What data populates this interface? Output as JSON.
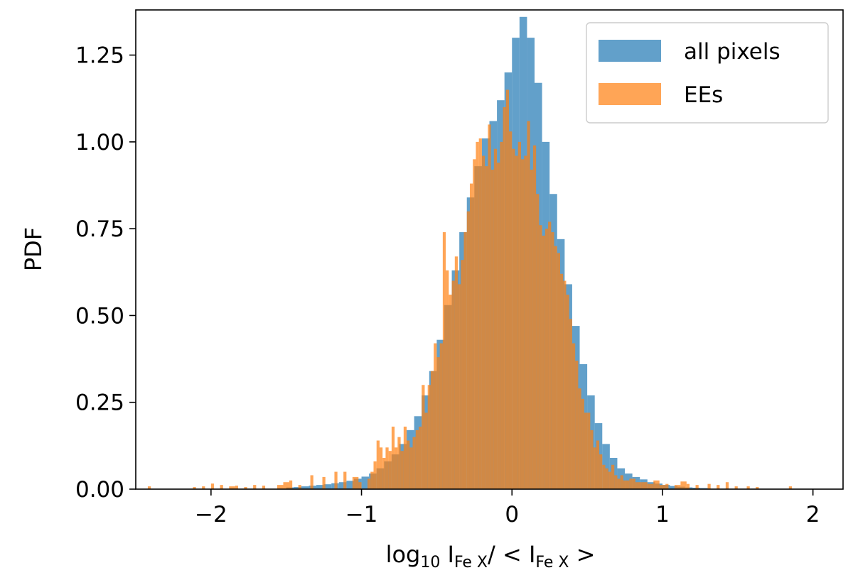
{
  "chart_data": {
    "type": "histogram",
    "title": "",
    "xlabel": {
      "main": "log",
      "sub1": "10",
      "mid": " I",
      "sub2": "Fe X",
      "tail": "/ < I",
      "sub3": "Fe X",
      "end": " >"
    },
    "ylabel": "PDF",
    "xlim": [
      -2.5,
      2.2
    ],
    "ylim": [
      0,
      1.38
    ],
    "x_ticks": [
      -2,
      -1,
      0,
      1,
      2
    ],
    "x_tick_labels": [
      "−2",
      "−1",
      "0",
      "1",
      "2"
    ],
    "y_ticks": [
      0,
      0.25,
      0.5,
      0.75,
      1.0,
      1.25
    ],
    "y_tick_labels": [
      "0.00",
      "0.25",
      "0.50",
      "0.75",
      "1.00",
      "1.25"
    ],
    "grid": false,
    "legend_position": "top-right",
    "bin_width": 0.05,
    "series": [
      {
        "name": "all pixels",
        "color": "#1f77b4",
        "alpha": 0.7,
        "bins": [
          [
            -1.5,
            0.005
          ],
          [
            -1.45,
            0.006
          ],
          [
            -1.4,
            0.008
          ],
          [
            -1.35,
            0.01
          ],
          [
            -1.3,
            0.012
          ],
          [
            -1.25,
            0.014
          ],
          [
            -1.2,
            0.017
          ],
          [
            -1.15,
            0.02
          ],
          [
            -1.1,
            0.024
          ],
          [
            -1.05,
            0.03
          ],
          [
            -1.0,
            0.036
          ],
          [
            -0.95,
            0.045
          ],
          [
            -0.9,
            0.06
          ],
          [
            -0.85,
            0.08
          ],
          [
            -0.8,
            0.1
          ],
          [
            -0.75,
            0.13
          ],
          [
            -0.7,
            0.17
          ],
          [
            -0.65,
            0.21
          ],
          [
            -0.6,
            0.27
          ],
          [
            -0.55,
            0.34
          ],
          [
            -0.5,
            0.43
          ],
          [
            -0.45,
            0.53
          ],
          [
            -0.4,
            0.63
          ],
          [
            -0.35,
            0.74
          ],
          [
            -0.3,
            0.84
          ],
          [
            -0.25,
            0.93
          ],
          [
            -0.2,
            1.01
          ],
          [
            -0.15,
            1.06
          ],
          [
            -0.1,
            1.12
          ],
          [
            -0.05,
            1.2
          ],
          [
            0.0,
            1.3
          ],
          [
            0.05,
            1.36
          ],
          [
            0.1,
            1.3
          ],
          [
            0.15,
            1.17
          ],
          [
            0.2,
            1.0
          ],
          [
            0.25,
            0.85
          ],
          [
            0.3,
            0.72
          ],
          [
            0.35,
            0.59
          ],
          [
            0.4,
            0.47
          ],
          [
            0.45,
            0.36
          ],
          [
            0.5,
            0.27
          ],
          [
            0.55,
            0.19
          ],
          [
            0.6,
            0.13
          ],
          [
            0.65,
            0.09
          ],
          [
            0.7,
            0.06
          ],
          [
            0.75,
            0.045
          ],
          [
            0.8,
            0.035
          ],
          [
            0.85,
            0.028
          ],
          [
            0.9,
            0.02
          ],
          [
            0.95,
            0.016
          ],
          [
            1.0,
            0.012
          ],
          [
            1.05,
            0.009
          ],
          [
            1.1,
            0.007
          ],
          [
            1.15,
            0.005
          ],
          [
            1.2,
            0.004
          ],
          [
            1.25,
            0.003
          ]
        ]
      },
      {
        "name": "EEs",
        "color": "#ff7f0e",
        "alpha": 0.7,
        "bins": [
          [
            -2.42,
            0.008
          ],
          [
            -2.12,
            0.006
          ],
          [
            -2.06,
            0.008
          ],
          [
            -2.0,
            0.016
          ],
          [
            -1.94,
            0.012
          ],
          [
            -1.88,
            0.008
          ],
          [
            -1.84,
            0.01
          ],
          [
            -1.78,
            0.006
          ],
          [
            -1.72,
            0.012
          ],
          [
            -1.66,
            0.01
          ],
          [
            -1.56,
            0.012
          ],
          [
            -1.52,
            0.02
          ],
          [
            -1.48,
            0.025
          ],
          [
            -1.42,
            0.012
          ],
          [
            -1.34,
            0.04
          ],
          [
            -1.26,
            0.035
          ],
          [
            -1.18,
            0.05
          ],
          [
            -1.12,
            0.05
          ],
          [
            -1.06,
            0.035
          ],
          [
            -1.02,
            0.02
          ],
          [
            -0.96,
            0.03
          ],
          [
            -0.94,
            0.05
          ],
          [
            -0.92,
            0.08
          ],
          [
            -0.9,
            0.14
          ],
          [
            -0.88,
            0.12
          ],
          [
            -0.86,
            0.09
          ],
          [
            -0.84,
            0.12
          ],
          [
            -0.82,
            0.11
          ],
          [
            -0.8,
            0.18
          ],
          [
            -0.78,
            0.12
          ],
          [
            -0.76,
            0.15
          ],
          [
            -0.74,
            0.11
          ],
          [
            -0.72,
            0.18
          ],
          [
            -0.7,
            0.14
          ],
          [
            -0.68,
            0.12
          ],
          [
            -0.66,
            0.15
          ],
          [
            -0.64,
            0.17
          ],
          [
            -0.62,
            0.18
          ],
          [
            -0.6,
            0.3
          ],
          [
            -0.58,
            0.22
          ],
          [
            -0.56,
            0.3
          ],
          [
            -0.54,
            0.34
          ],
          [
            -0.52,
            0.42
          ],
          [
            -0.5,
            0.38
          ],
          [
            -0.48,
            0.42
          ],
          [
            -0.46,
            0.74
          ],
          [
            -0.44,
            0.63
          ],
          [
            -0.42,
            0.56
          ],
          [
            -0.4,
            0.6
          ],
          [
            -0.38,
            0.67
          ],
          [
            -0.36,
            0.59
          ],
          [
            -0.34,
            0.66
          ],
          [
            -0.32,
            0.74
          ],
          [
            -0.3,
            0.8
          ],
          [
            -0.28,
            0.88
          ],
          [
            -0.26,
            0.95
          ],
          [
            -0.24,
            1.0
          ],
          [
            -0.22,
            1.01
          ],
          [
            -0.2,
            0.96
          ],
          [
            -0.18,
            0.93
          ],
          [
            -0.16,
            1.05
          ],
          [
            -0.14,
            0.92
          ],
          [
            -0.12,
            0.98
          ],
          [
            -0.1,
            0.94
          ],
          [
            -0.08,
            1.0
          ],
          [
            -0.06,
            1.1
          ],
          [
            -0.04,
            1.15
          ],
          [
            -0.02,
            1.03
          ],
          [
            0.0,
            0.98
          ],
          [
            0.02,
            0.96
          ],
          [
            0.04,
            1.0
          ],
          [
            0.06,
            0.95
          ],
          [
            0.08,
            0.96
          ],
          [
            0.1,
            1.06
          ],
          [
            0.12,
            0.92
          ],
          [
            0.14,
            0.99
          ],
          [
            0.16,
            0.85
          ],
          [
            0.18,
            0.76
          ],
          [
            0.2,
            0.73
          ],
          [
            0.22,
            0.75
          ],
          [
            0.24,
            0.77
          ],
          [
            0.26,
            0.74
          ],
          [
            0.28,
            0.7
          ],
          [
            0.3,
            0.68
          ],
          [
            0.32,
            0.62
          ],
          [
            0.34,
            0.6
          ],
          [
            0.36,
            0.56
          ],
          [
            0.38,
            0.49
          ],
          [
            0.4,
            0.42
          ],
          [
            0.42,
            0.37
          ],
          [
            0.44,
            0.29
          ],
          [
            0.46,
            0.26
          ],
          [
            0.48,
            0.22
          ],
          [
            0.5,
            0.22
          ],
          [
            0.52,
            0.17
          ],
          [
            0.54,
            0.12
          ],
          [
            0.56,
            0.14
          ],
          [
            0.58,
            0.1
          ],
          [
            0.6,
            0.07
          ],
          [
            0.62,
            0.06
          ],
          [
            0.64,
            0.05
          ],
          [
            0.66,
            0.07
          ],
          [
            0.68,
            0.04
          ],
          [
            0.7,
            0.03
          ],
          [
            0.72,
            0.04
          ],
          [
            0.74,
            0.025
          ],
          [
            0.78,
            0.03
          ],
          [
            0.82,
            0.02
          ],
          [
            0.86,
            0.02
          ],
          [
            0.9,
            0.015
          ],
          [
            0.94,
            0.025
          ],
          [
            0.98,
            0.012
          ],
          [
            1.02,
            0.015
          ],
          [
            1.08,
            0.012
          ],
          [
            1.12,
            0.022
          ],
          [
            1.16,
            0.015
          ],
          [
            1.22,
            0.012
          ],
          [
            1.3,
            0.015
          ],
          [
            1.36,
            0.012
          ],
          [
            1.42,
            0.02
          ],
          [
            1.48,
            0.008
          ],
          [
            1.56,
            0.008
          ],
          [
            1.62,
            0.006
          ],
          [
            1.84,
            0.008
          ]
        ]
      }
    ]
  }
}
